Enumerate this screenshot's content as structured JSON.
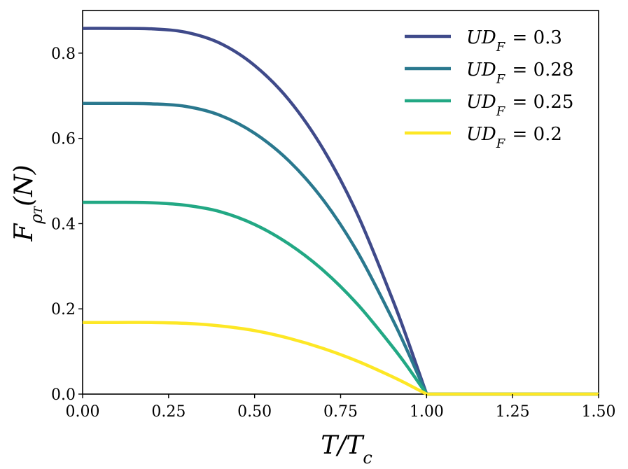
{
  "chart_data": {
    "type": "line",
    "title": "",
    "xlabel": "T/T_c",
    "ylabel": "F_ρT(N)",
    "xlim": [
      0.0,
      1.5
    ],
    "ylim": [
      0.0,
      0.9
    ],
    "xticks": [
      0.0,
      0.25,
      0.5,
      0.75,
      1.0,
      1.25,
      1.5
    ],
    "xtick_labels": [
      "0.00",
      "0.25",
      "0.50",
      "0.75",
      "1.00",
      "1.25",
      "1.50"
    ],
    "yticks": [
      0.0,
      0.2,
      0.4,
      0.6,
      0.8
    ],
    "ytick_labels": [
      "0.0",
      "0.2",
      "0.4",
      "0.6",
      "0.8"
    ],
    "grid": false,
    "legend_position": "top-right",
    "x": [
      0.0,
      0.1,
      0.2,
      0.3,
      0.4,
      0.5,
      0.6,
      0.7,
      0.8,
      0.9,
      0.95,
      1.0,
      1.1,
      1.2,
      1.3,
      1.4,
      1.5
    ],
    "series": [
      {
        "name": "UD_F = 0.3",
        "label_main": "UD",
        "label_sub": "F",
        "label_rest": " = 0.3",
        "color": "#3f4a8a",
        "values": [
          0.858,
          0.858,
          0.857,
          0.849,
          0.823,
          0.771,
          0.69,
          0.574,
          0.42,
          0.224,
          0.115,
          0.0,
          0.0,
          0.0,
          0.0,
          0.0,
          0.0
        ]
      },
      {
        "name": "UD_F = 0.28",
        "label_main": "UD",
        "label_sub": "F",
        "label_rest": " = 0.28",
        "color": "#2a788e",
        "values": [
          0.682,
          0.682,
          0.681,
          0.675,
          0.654,
          0.612,
          0.547,
          0.455,
          0.332,
          0.177,
          0.091,
          0.0,
          0.0,
          0.0,
          0.0,
          0.0,
          0.0
        ]
      },
      {
        "name": "UD_F = 0.25",
        "label_main": "UD",
        "label_sub": "F",
        "label_rest": " = 0.25",
        "color": "#22a884",
        "values": [
          0.45,
          0.45,
          0.449,
          0.443,
          0.428,
          0.398,
          0.352,
          0.29,
          0.21,
          0.112,
          0.058,
          0.0,
          0.0,
          0.0,
          0.0,
          0.0,
          0.0
        ]
      },
      {
        "name": "UD_F = 0.2",
        "label_main": "UD",
        "label_sub": "F",
        "label_rest": " = 0.2",
        "color": "#fde725",
        "values": [
          0.168,
          0.168,
          0.168,
          0.166,
          0.16,
          0.149,
          0.131,
          0.107,
          0.077,
          0.041,
          0.021,
          0.0,
          0.0,
          0.0,
          0.0,
          0.0,
          0.0
        ]
      }
    ]
  }
}
